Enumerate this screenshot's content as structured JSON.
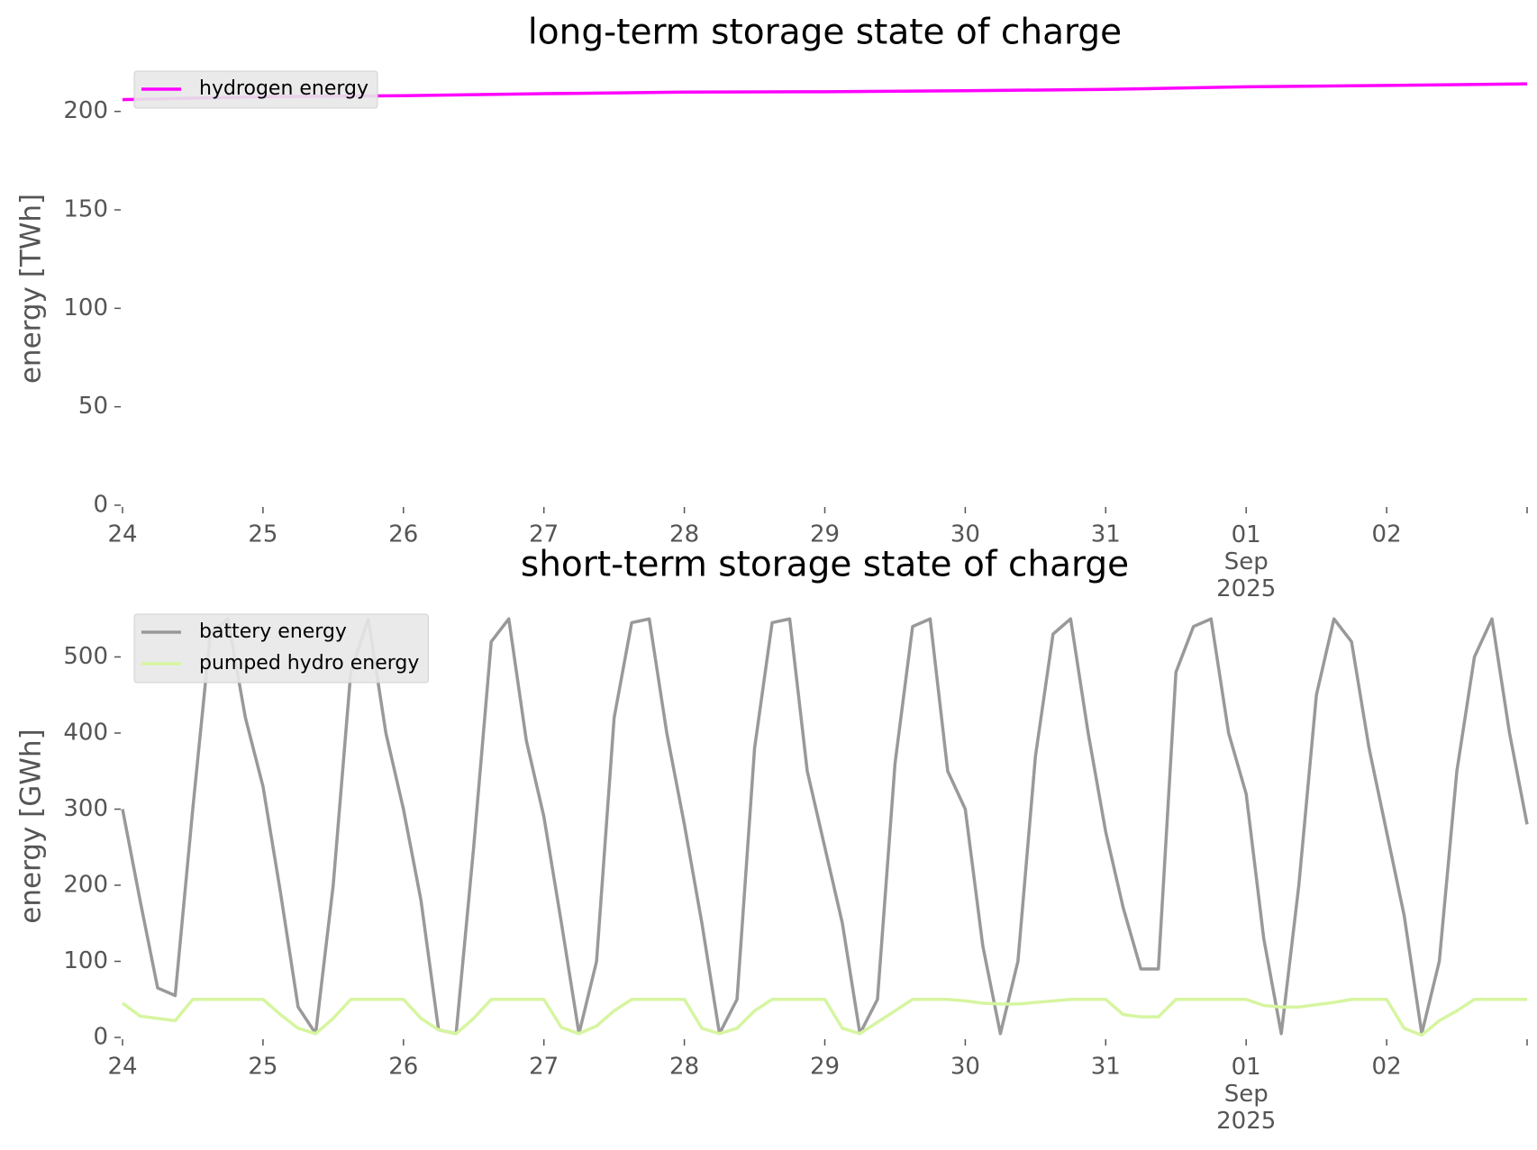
{
  "chart_data": [
    {
      "type": "line",
      "title": "long-term storage state of charge",
      "ylabel": "energy [TWh]",
      "x": [
        0,
        1,
        2,
        3,
        4,
        5,
        6,
        7,
        8,
        9,
        10
      ],
      "series": [
        {
          "name": "hydrogen energy",
          "color": "#ff00ff",
          "values": [
            206,
            207.5,
            208,
            209,
            209.8,
            210,
            210.5,
            211.2,
            212.5,
            213.2,
            214
          ]
        }
      ],
      "xlim": [
        0,
        10
      ],
      "xticks": [
        {
          "value": 0,
          "label": "24"
        },
        {
          "value": 1,
          "label": "25"
        },
        {
          "value": 2,
          "label": "26"
        },
        {
          "value": 3,
          "label": "27"
        },
        {
          "value": 4,
          "label": "28"
        },
        {
          "value": 5,
          "label": "29"
        },
        {
          "value": 6,
          "label": "30"
        },
        {
          "value": 7,
          "label": "31"
        },
        {
          "value": 8,
          "label": "01\nSep\n2025"
        },
        {
          "value": 9,
          "label": "02"
        }
      ],
      "ylim": [
        0,
        220
      ],
      "yticks": [
        0,
        50,
        100,
        150,
        200
      ],
      "legend": "upper left",
      "grid": false
    },
    {
      "type": "line",
      "title": "short-term storage state of charge",
      "ylabel": "energy [GWh]",
      "x": [
        0,
        0.125,
        0.25,
        0.375,
        0.5,
        0.625,
        0.75,
        0.875,
        1,
        1.125,
        1.25,
        1.375,
        1.5,
        1.625,
        1.75,
        1.875,
        2,
        2.125,
        2.25,
        2.375,
        2.5,
        2.625,
        2.75,
        2.875,
        3,
        3.125,
        3.25,
        3.375,
        3.5,
        3.625,
        3.75,
        3.875,
        4,
        4.125,
        4.25,
        4.375,
        4.5,
        4.625,
        4.75,
        4.875,
        5,
        5.125,
        5.25,
        5.375,
        5.5,
        5.625,
        5.75,
        5.875,
        6,
        6.125,
        6.25,
        6.375,
        6.5,
        6.625,
        6.75,
        6.875,
        7,
        7.125,
        7.25,
        7.375,
        7.5,
        7.625,
        7.75,
        7.875,
        8,
        8.125,
        8.25,
        8.375,
        8.5,
        8.625,
        8.75,
        8.875,
        9,
        9.125,
        9.25,
        9.375,
        9.5,
        9.625,
        9.75,
        9.875,
        10
      ],
      "series": [
        {
          "name": "battery energy",
          "color": "#999999",
          "values": [
            300,
            180,
            65,
            55,
            300,
            530,
            550,
            420,
            330,
            190,
            40,
            5,
            200,
            480,
            550,
            400,
            300,
            180,
            10,
            5,
            250,
            520,
            550,
            390,
            290,
            150,
            5,
            100,
            420,
            545,
            550,
            400,
            280,
            150,
            5,
            50,
            380,
            545,
            550,
            350,
            250,
            150,
            5,
            50,
            360,
            540,
            550,
            350,
            300,
            120,
            5,
            100,
            370,
            530,
            550,
            400,
            270,
            170,
            90,
            90,
            480,
            540,
            550,
            400,
            320,
            130,
            5,
            200,
            450,
            550,
            520,
            380,
            270,
            160,
            5,
            100,
            350,
            500,
            550,
            400,
            280
          ]
        },
        {
          "name": "pumped hydro energy",
          "color": "#d6f5a0",
          "values": [
            45,
            28,
            25,
            22,
            50,
            50,
            50,
            50,
            50,
            30,
            12,
            5,
            25,
            50,
            50,
            50,
            50,
            25,
            10,
            5,
            25,
            50,
            50,
            50,
            50,
            13,
            5,
            15,
            35,
            50,
            50,
            50,
            50,
            12,
            5,
            12,
            35,
            50,
            50,
            50,
            50,
            12,
            5,
            20,
            35,
            50,
            50,
            50,
            48,
            45,
            44,
            44,
            46,
            48,
            50,
            50,
            50,
            30,
            27,
            27,
            50,
            50,
            50,
            50,
            50,
            42,
            40,
            40,
            43,
            46,
            50,
            50,
            50,
            12,
            3,
            22,
            35,
            50,
            50,
            50,
            50
          ]
        }
      ],
      "xlim": [
        0,
        10
      ],
      "xticks": [
        {
          "value": 0,
          "label": "24"
        },
        {
          "value": 1,
          "label": "25"
        },
        {
          "value": 2,
          "label": "26"
        },
        {
          "value": 3,
          "label": "27"
        },
        {
          "value": 4,
          "label": "28"
        },
        {
          "value": 5,
          "label": "29"
        },
        {
          "value": 6,
          "label": "30"
        },
        {
          "value": 7,
          "label": "31"
        },
        {
          "value": 8,
          "label": "01\nSep\n2025"
        },
        {
          "value": 9,
          "label": "02"
        }
      ],
      "ylim": [
        0,
        555
      ],
      "yticks": [
        0,
        100,
        200,
        300,
        400,
        500
      ],
      "legend": "upper left",
      "grid": false
    }
  ]
}
